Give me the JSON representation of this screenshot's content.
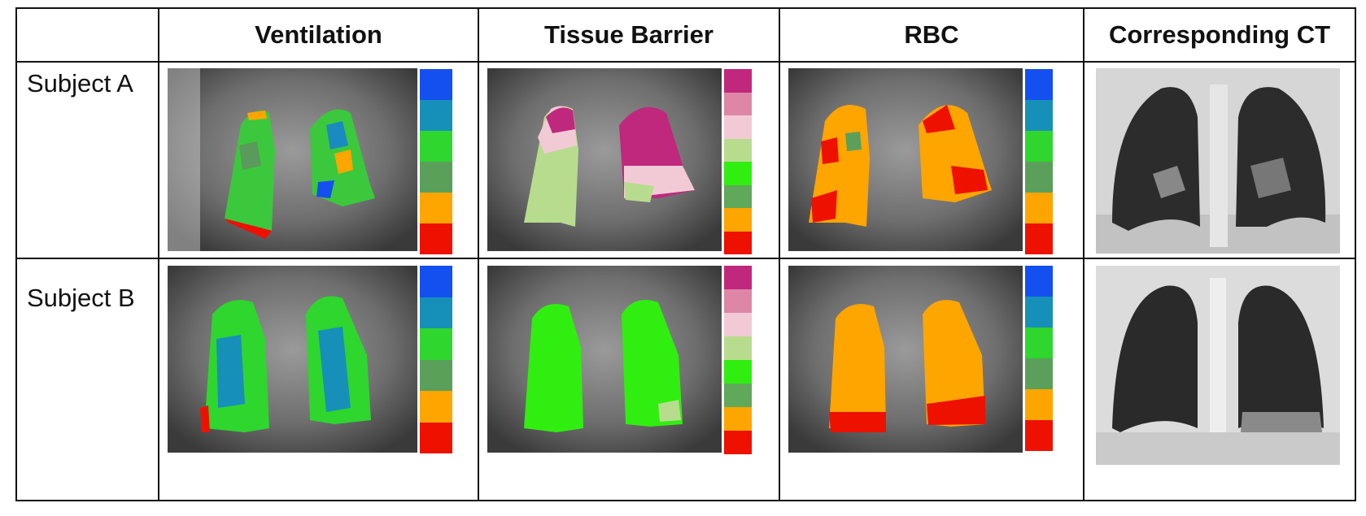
{
  "table": {
    "headers": [
      "",
      "Ventilation",
      "Tissue Barrier",
      "RBC",
      "Corresponding CT"
    ],
    "rows": [
      {
        "label": "Subject A"
      },
      {
        "label": "Subject B"
      }
    ]
  },
  "colors": {
    "ventilation_scale": [
      "#1450f0",
      "#1690b8",
      "#2ed62e",
      "#5aa05a",
      "#ffa500",
      "#ee1100"
    ],
    "barrier_scale": [
      "#c0287e",
      "#de86a6",
      "#f2cad6",
      "#b8dc8e",
      "#30ee10",
      "#60a85a",
      "#ffa500",
      "#ee1100"
    ],
    "rbc_scale": [
      "#1450f0",
      "#1690b8",
      "#2ed62e",
      "#5aa05a",
      "#ffa500",
      "#ee1100"
    ]
  }
}
